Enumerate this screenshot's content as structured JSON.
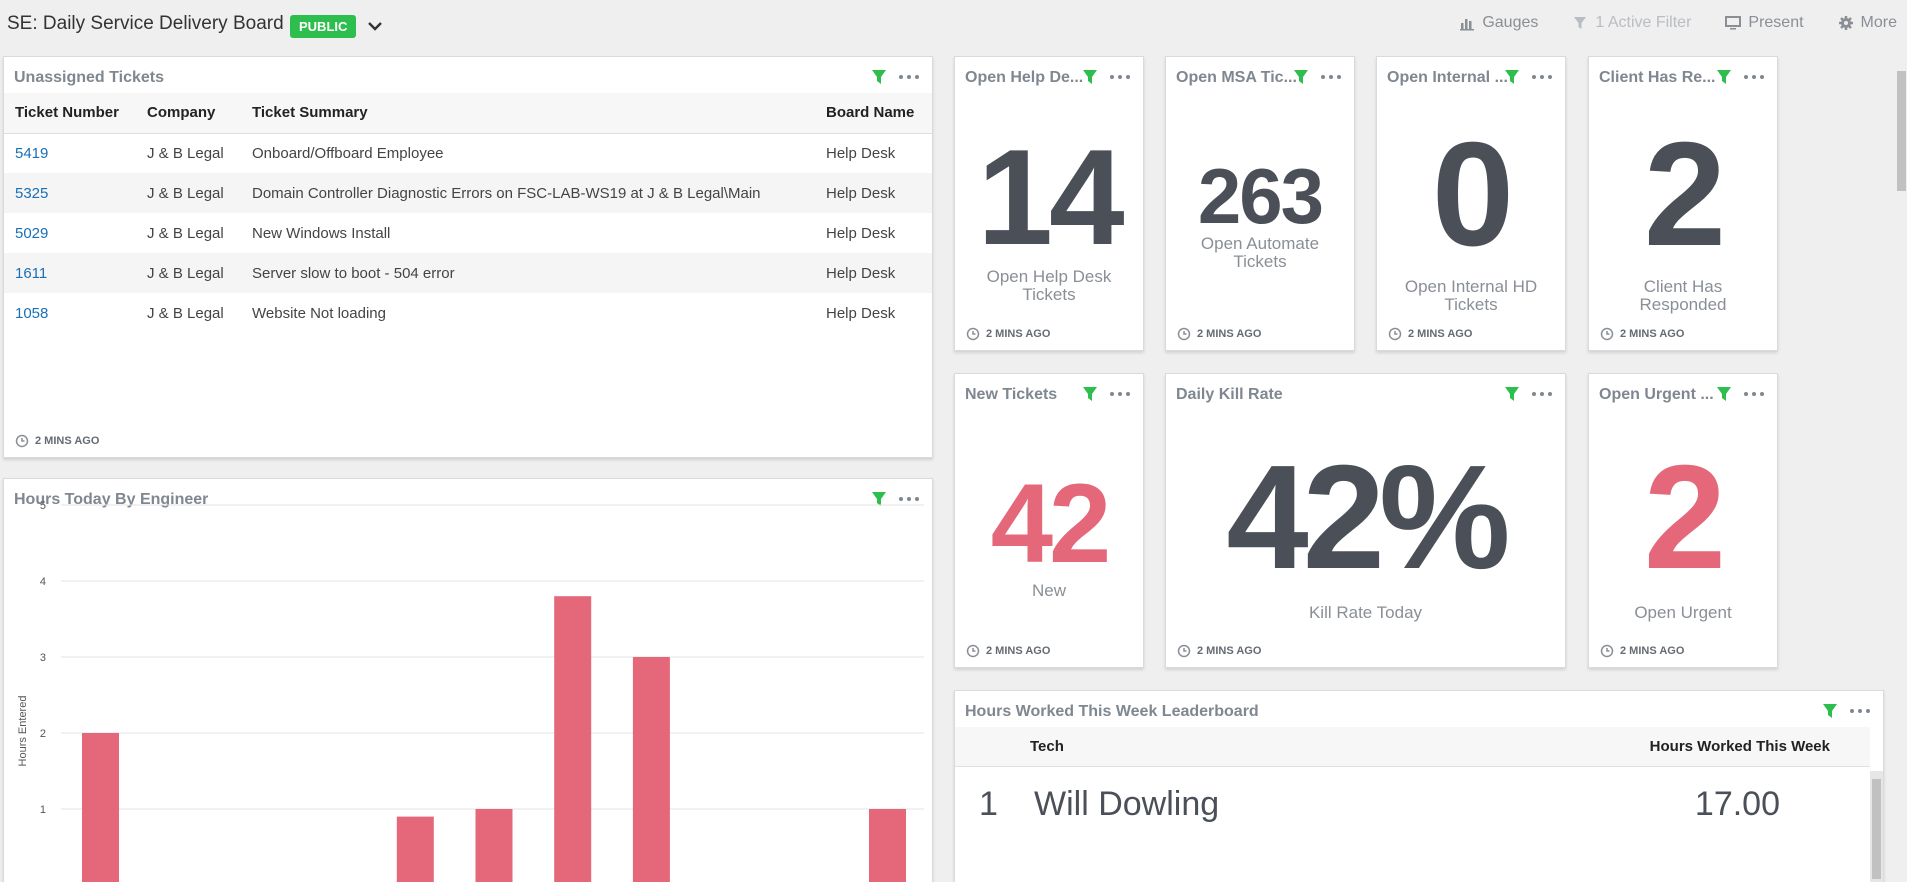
{
  "header": {
    "title": "SE: Daily Service Delivery Board",
    "badge": "PUBLIC",
    "actions": {
      "gauges": "Gauges",
      "filter": "1 Active Filter",
      "present": "Present",
      "more": "More"
    }
  },
  "colors": {
    "accent_green": "#2dbe4e",
    "red": "#e5677a",
    "dark": "#4b5058",
    "link": "#1a6fb5"
  },
  "unassigned": {
    "title": "Unassigned Tickets",
    "columns": [
      "Ticket Number",
      "Company",
      "Ticket Summary",
      "Board Name"
    ],
    "rows": [
      [
        "5419",
        "J & B Legal",
        "Onboard/Offboard Employee",
        "Help Desk"
      ],
      [
        "5325",
        "J & B Legal",
        "Domain Controller Diagnostic Errors on FSC-LAB-WS19 at J & B Legal\\Main",
        "Help Desk"
      ],
      [
        "5029",
        "J & B Legal",
        "New Windows Install",
        "Help Desk"
      ],
      [
        "1611",
        "J & B Legal",
        "Server slow to boot - 504 error",
        "Help Desk"
      ],
      [
        "1058",
        "J & B Legal",
        "Website Not loading",
        "Help Desk"
      ]
    ],
    "updated": "2 MINS AGO"
  },
  "cards": {
    "help_desk": {
      "title": "Open Help De...",
      "value": "14",
      "label": "Open Help Desk Tickets",
      "updated": "2 MINS AGO"
    },
    "msa": {
      "title": "Open MSA Tic...",
      "value": "263",
      "label": "Open Automate Tickets",
      "updated": "2 MINS AGO"
    },
    "internal": {
      "title": "Open Internal ...",
      "value": "0",
      "label": "Open Internal HD Tickets",
      "updated": "2 MINS AGO"
    },
    "client": {
      "title": "Client Has Re...",
      "value": "2",
      "label": "Client Has Responded",
      "updated": "2 MINS AGO"
    },
    "new": {
      "title": "New Tickets",
      "value": "42",
      "label": "New",
      "updated": "2 MINS AGO"
    },
    "kill": {
      "title": "Daily Kill Rate",
      "value": "42%",
      "label": "Kill Rate Today",
      "updated": "2 MINS AGO"
    },
    "urgent": {
      "title": "Open Urgent ...",
      "value": "2",
      "label": "Open Urgent",
      "updated": "2 MINS AGO"
    }
  },
  "hours_chart": {
    "title": "Hours Today By Engineer"
  },
  "chart_data": {
    "type": "bar",
    "ylabel": "Hours Entered",
    "xlabel": "",
    "ylim": [
      0,
      5
    ],
    "yticks": [
      "1",
      "2",
      "3",
      "4",
      "5"
    ],
    "values": [
      2,
      0,
      0,
      0,
      0.9,
      1,
      3.8,
      3,
      0,
      0,
      1
    ],
    "grid": true,
    "color": "#e5677a"
  },
  "leaderboard": {
    "title": "Hours Worked This Week Leaderboard",
    "columns": [
      "Tech",
      "Hours Worked This Week"
    ],
    "rows": [
      {
        "rank": "1",
        "name": "Will Dowling",
        "hours": "17.00"
      }
    ]
  }
}
